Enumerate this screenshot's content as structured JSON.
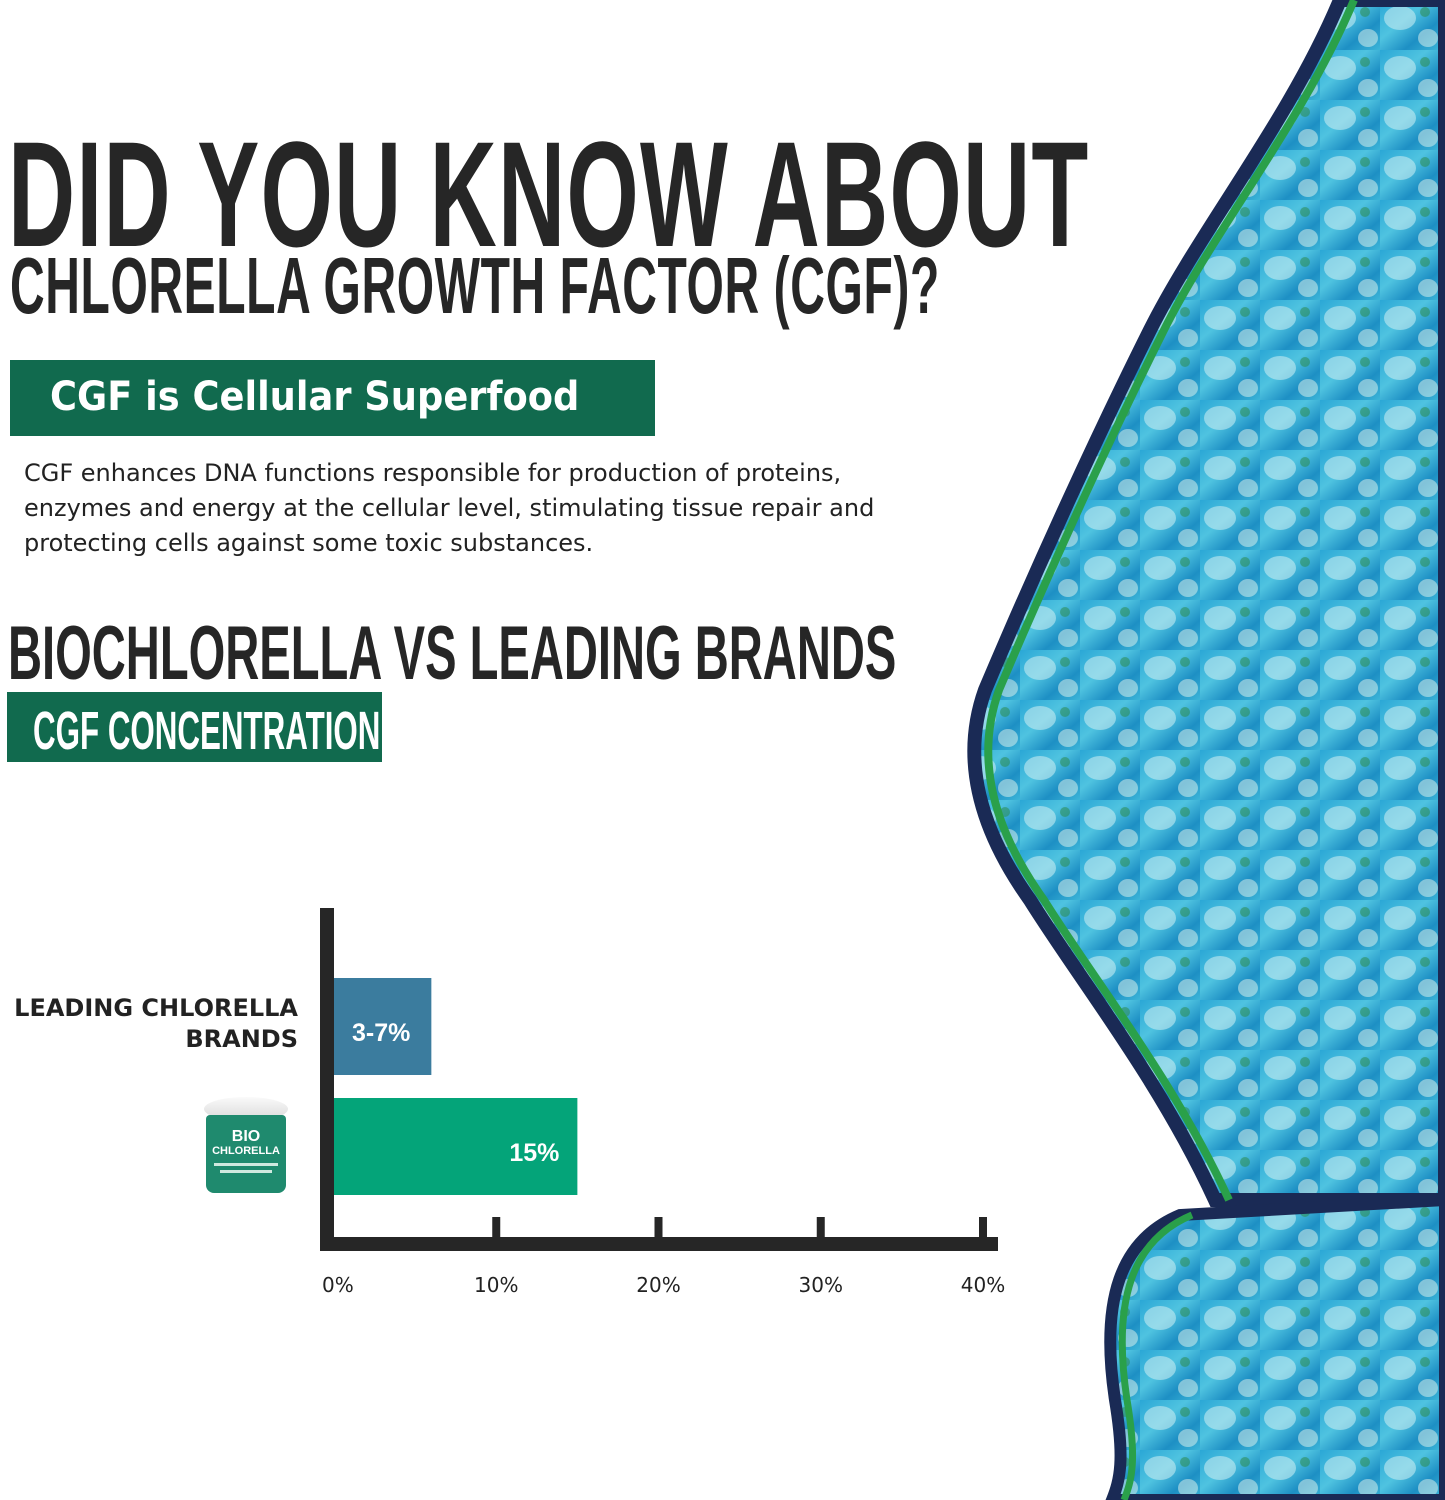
{
  "header": {
    "title_line1": "DID YOU KNOW ABOUT",
    "title_line2": "CHLORELLA GROWTH FACTOR (CGF)?"
  },
  "section1": {
    "banner": "CGF is Cellular Superfood",
    "body": "CGF enhances DNA functions responsible for production of proteins, enzymes and energy at the cellular level, stimulating tissue repair and protecting cells against some toxic substances."
  },
  "section2": {
    "heading": "BIOCHLORELLA VS LEADING BRANDS",
    "banner": "CGF CONCENTRATION"
  },
  "product": {
    "brand_line1": "BIO",
    "brand_line2": "CHLORELLA"
  },
  "colors": {
    "accent": "#116a4e",
    "bar_leading": "#3b7c9e",
    "bar_bio": "#04a479",
    "axis": "#262626"
  },
  "chart_data": {
    "type": "bar",
    "orientation": "horizontal",
    "categories": [
      "LEADING CHLORELLA BRANDS",
      "BIO CHLORELLA"
    ],
    "values": [
      6,
      15
    ],
    "data_labels": [
      "3-7%",
      "15%"
    ],
    "xlim": [
      0,
      40
    ],
    "xticks": [
      0,
      10,
      20,
      30,
      40
    ],
    "xtick_labels": [
      "0%",
      "10%",
      "20%",
      "30%",
      "40%"
    ],
    "title": "",
    "xlabel": "",
    "ylabel": "",
    "grid": false
  }
}
